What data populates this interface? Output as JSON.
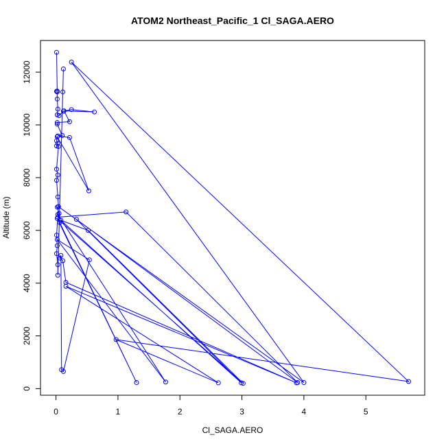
{
  "chart_data": {
    "type": "line",
    "title": "ATOM2 Northeast_Pacific_1 Cl_SAGA.AERO",
    "xlabel": "Cl_SAGA.AERO",
    "ylabel": "Altitude (m)",
    "xlim": [
      -0.25,
      5.95
    ],
    "ylim": [
      -250,
      13200
    ],
    "xticks": [
      0,
      1,
      2,
      3,
      4,
      5
    ],
    "yticks": [
      0,
      2000,
      4000,
      6000,
      8000,
      10000,
      12000
    ],
    "grid": false,
    "legend": "none",
    "colors": {
      "series": "#0000ff",
      "axes": "#000000"
    },
    "series": [
      {
        "x": [
          0.01,
          0.02,
          0.01,
          0.02,
          0.02,
          0.03,
          0.02,
          0.05,
          0.12,
          0.25,
          0.62,
          0.13,
          0.22,
          0.02,
          0.02,
          0.1,
          0.03,
          0.22,
          0.53,
          0.02,
          0.01,
          0.03,
          0.01,
          0.04,
          0.01,
          0.03,
          0.01,
          0.03,
          0.04,
          0.02,
          0.05,
          0.03,
          1.13,
          3.9,
          0.33,
          2.99,
          0.08,
          0.52,
          3.02,
          0.02,
          1.3,
          0.06,
          0.03,
          1.77,
          0.02,
          0.54,
          0.12,
          0.09,
          0.08,
          0.06,
          0.11,
          0.16,
          3.88,
          0.16,
          2.62,
          0.97,
          5.69,
          0.25,
          4.0,
          0.04,
          0.01,
          0.02,
          0.01,
          0.03,
          0.03,
          0.11,
          0.12
        ],
        "y": [
          12750,
          11280,
          11270,
          11250,
          10980,
          10600,
          10380,
          10350,
          10520,
          10580,
          10490,
          10530,
          10120,
          10090,
          10030,
          9600,
          9580,
          9520,
          7500,
          9550,
          9400,
          9300,
          9200,
          9180,
          8320,
          8100,
          7900,
          7270,
          6900,
          6880,
          6640,
          6500,
          6700,
          230,
          6420,
          220,
          6380,
          6000,
          200,
          6450,
          230,
          6300,
          6600,
          250,
          5650,
          4880,
          650,
          720,
          5050,
          4950,
          4850,
          4030,
          220,
          3880,
          220,
          1860,
          270,
          12380,
          230,
          6900,
          5820,
          5420,
          5120,
          4700,
          4300,
          11250,
          12120
        ]
      }
    ]
  }
}
